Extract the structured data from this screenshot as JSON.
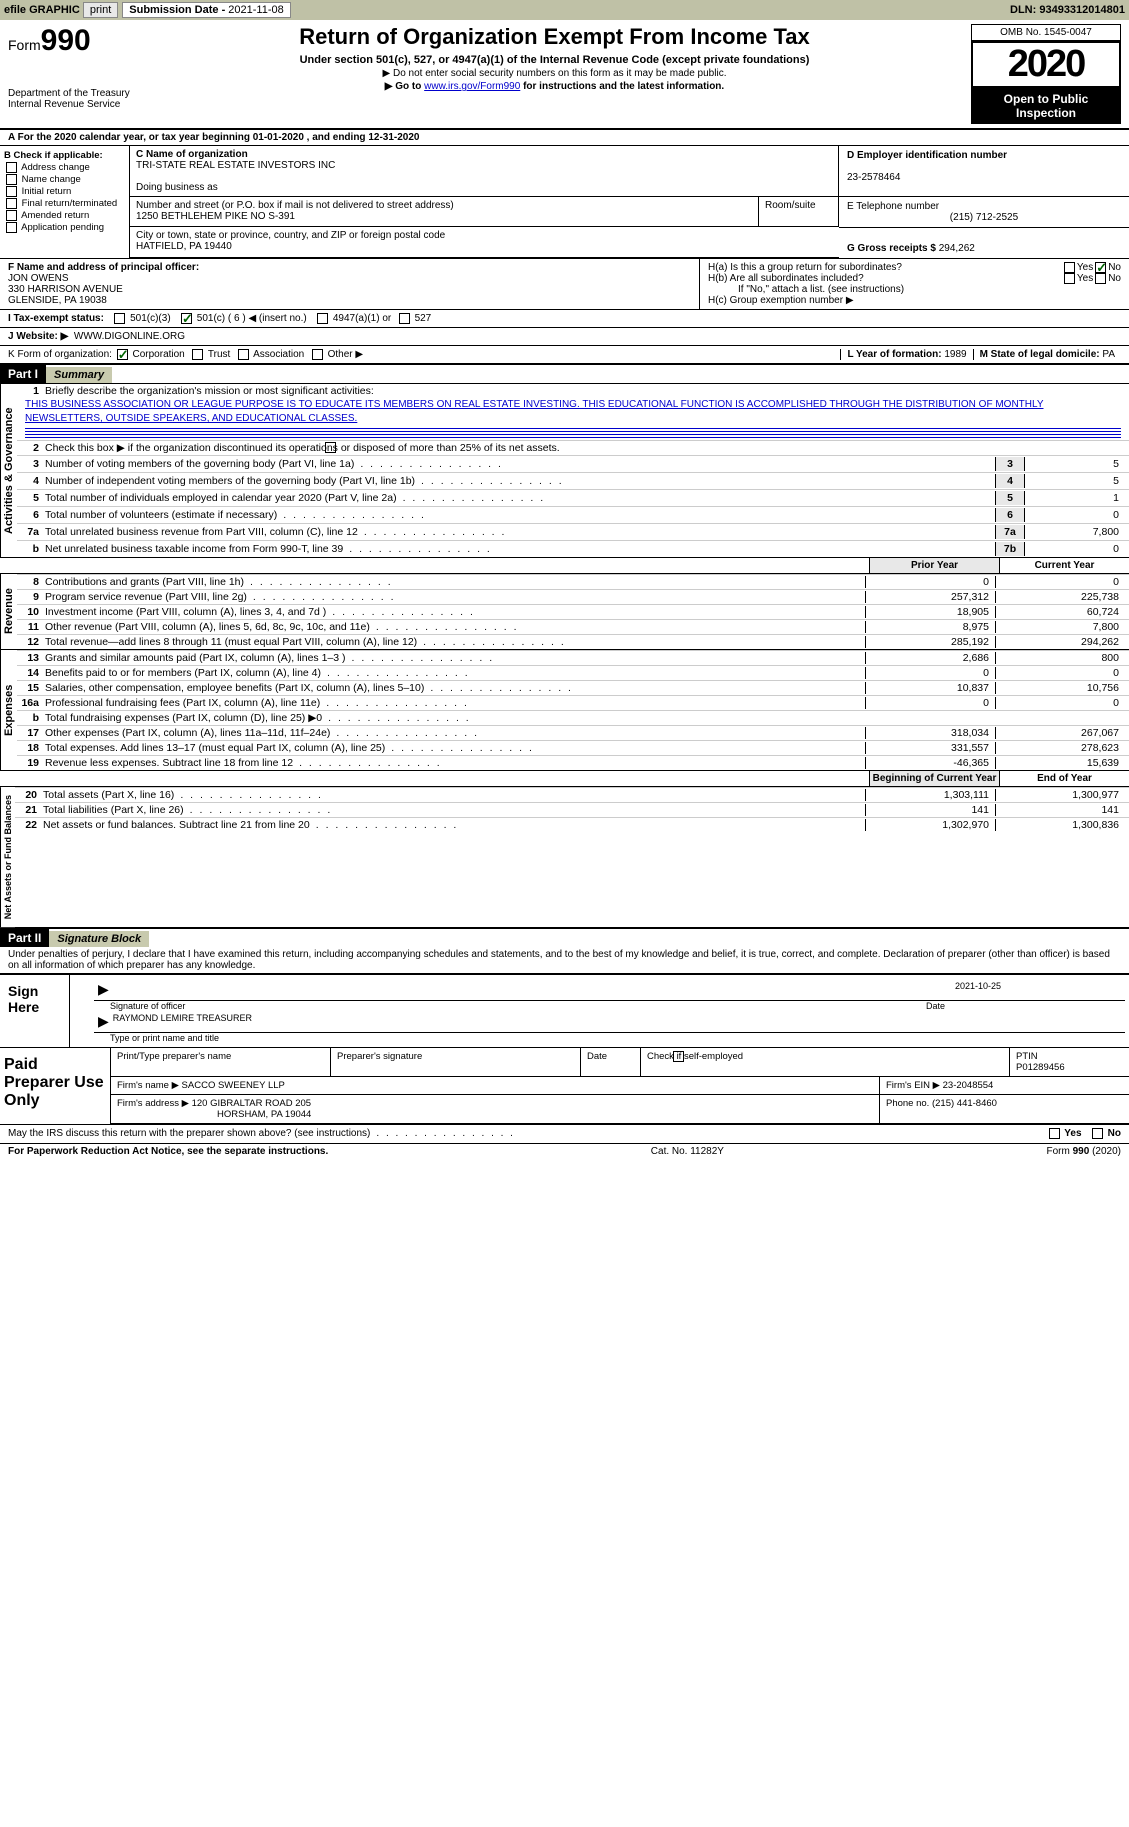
{
  "topbar": {
    "efile": "efile GRAPHIC",
    "print": "print",
    "subdate_label": "Submission Date - ",
    "subdate": "2021-11-08",
    "dln_label": "DLN: ",
    "dln": "93493312014801"
  },
  "header": {
    "form_prefix": "Form",
    "form_num": "990",
    "dept1": "Department of the Treasury",
    "dept2": "Internal Revenue Service",
    "title": "Return of Organization Exempt From Income Tax",
    "subtitle": "Under section 501(c), 527, or 4947(a)(1) of the Internal Revenue Code (except private foundations)",
    "note1": "▶ Do not enter social security numbers on this form as it may be made public.",
    "note2": "▶ Go to ",
    "link": "www.irs.gov/Form990",
    "note2b": " for instructions and the latest information.",
    "omb": "OMB No. 1545-0047",
    "year": "2020",
    "inspect1": "Open to Public",
    "inspect2": "Inspection"
  },
  "row_a": "A For the 2020 calendar year, or tax year beginning 01-01-2020   , and ending 12-31-2020",
  "col_b": {
    "label": "B Check if applicable:",
    "items": [
      "Address change",
      "Name change",
      "Initial return",
      "Final return/terminated",
      "Amended return",
      "Application pending"
    ]
  },
  "c_block": {
    "name_label": "C Name of organization",
    "name": "TRI-STATE REAL ESTATE INVESTORS INC",
    "dba_label": "Doing business as",
    "addr_label": "Number and street (or P.O. box if mail is not delivered to street address)",
    "room_label": "Room/suite",
    "addr": "1250 BETHLEHEM PIKE NO S-391",
    "city_label": "City or town, state or province, country, and ZIP or foreign postal code",
    "city": "HATFIELD, PA  19440"
  },
  "d_block": {
    "ein_label": "D Employer identification number",
    "ein": "23-2578464",
    "tel_label": "E Telephone number",
    "tel": "(215) 712-2525",
    "gross_label": "G Gross receipts $ ",
    "gross": "294,262"
  },
  "f_block": {
    "label": "F Name and address of principal officer:",
    "name": "JON OWENS",
    "addr1": "330 HARRISON AVENUE",
    "addr2": "GLENSIDE, PA  19038"
  },
  "h_block": {
    "ha": "H(a)  Is this a group return for subordinates?",
    "hb": "H(b)  Are all subordinates included?",
    "hb_note": "If \"No,\" attach a list. (see instructions)",
    "hc": "H(c)  Group exemption number ▶",
    "yes": "Yes",
    "no": "No"
  },
  "i_row": {
    "label": "I  Tax-exempt status:",
    "o1": "501(c)(3)",
    "o2": "501(c) ( 6 ) ◀ (insert no.)",
    "o3": "4947(a)(1) or",
    "o4": "527"
  },
  "j_row": {
    "label": "J  Website: ▶",
    "val": "WWW.DIGONLINE.ORG"
  },
  "k_row": {
    "label": "K Form of organization:",
    "opts": [
      "Corporation",
      "Trust",
      "Association",
      "Other ▶"
    ],
    "l_label": "L Year of formation: ",
    "l_val": "1989",
    "m_label": "M State of legal domicile: ",
    "m_val": "PA"
  },
  "part1": {
    "hdr": "Part I",
    "title": "Summary",
    "q1": "Briefly describe the organization's mission or most significant activities:",
    "mission": "THIS BUSINESS ASSOCIATION OR LEAGUE PURPOSE IS TO EDUCATE ITS MEMBERS ON REAL ESTATE INVESTING. THIS EDUCATIONAL FUNCTION IS ACCOMPLISHED THROUGH THE DISTRIBUTION OF MONTHLY NEWSLETTERS, OUTSIDE SPEAKERS, AND EDUCATIONAL CLASSES.",
    "q2": "Check this box ▶       if the organization discontinued its operations or disposed of more than 25% of its net assets."
  },
  "gov_lines": [
    {
      "n": "3",
      "t": "Number of voting members of the governing body (Part VI, line 1a)",
      "c": "3",
      "v": "5"
    },
    {
      "n": "4",
      "t": "Number of independent voting members of the governing body (Part VI, line 1b)",
      "c": "4",
      "v": "5"
    },
    {
      "n": "5",
      "t": "Total number of individuals employed in calendar year 2020 (Part V, line 2a)",
      "c": "5",
      "v": "1"
    },
    {
      "n": "6",
      "t": "Total number of volunteers (estimate if necessary)",
      "c": "6",
      "v": "0"
    },
    {
      "n": "7a",
      "t": "Total unrelated business revenue from Part VIII, column (C), line 12",
      "c": "7a",
      "v": "7,800"
    },
    {
      "n": "b",
      "t": "Net unrelated business taxable income from Form 990-T, line 39",
      "c": "7b",
      "v": "0"
    }
  ],
  "col_hdrs": {
    "prior": "Prior Year",
    "curr": "Current Year",
    "boy": "Beginning of Current Year",
    "eoy": "End of Year"
  },
  "rev_lines": [
    {
      "n": "8",
      "t": "Contributions and grants (Part VIII, line 1h)",
      "p": "0",
      "c": "0"
    },
    {
      "n": "9",
      "t": "Program service revenue (Part VIII, line 2g)",
      "p": "257,312",
      "c": "225,738"
    },
    {
      "n": "10",
      "t": "Investment income (Part VIII, column (A), lines 3, 4, and 7d )",
      "p": "18,905",
      "c": "60,724"
    },
    {
      "n": "11",
      "t": "Other revenue (Part VIII, column (A), lines 5, 6d, 8c, 9c, 10c, and 11e)",
      "p": "8,975",
      "c": "7,800"
    },
    {
      "n": "12",
      "t": "Total revenue—add lines 8 through 11 (must equal Part VIII, column (A), line 12)",
      "p": "285,192",
      "c": "294,262"
    }
  ],
  "exp_lines": [
    {
      "n": "13",
      "t": "Grants and similar amounts paid (Part IX, column (A), lines 1–3 )",
      "p": "2,686",
      "c": "800"
    },
    {
      "n": "14",
      "t": "Benefits paid to or for members (Part IX, column (A), line 4)",
      "p": "0",
      "c": "0"
    },
    {
      "n": "15",
      "t": "Salaries, other compensation, employee benefits (Part IX, column (A), lines 5–10)",
      "p": "10,837",
      "c": "10,756"
    },
    {
      "n": "16a",
      "t": "Professional fundraising fees (Part IX, column (A), line 11e)",
      "p": "0",
      "c": "0"
    },
    {
      "n": "b",
      "t": "Total fundraising expenses (Part IX, column (D), line 25) ▶0",
      "p": "",
      "c": "",
      "shade": true
    },
    {
      "n": "17",
      "t": "Other expenses (Part IX, column (A), lines 11a–11d, 11f–24e)",
      "p": "318,034",
      "c": "267,067"
    },
    {
      "n": "18",
      "t": "Total expenses. Add lines 13–17 (must equal Part IX, column (A), line 25)",
      "p": "331,557",
      "c": "278,623"
    },
    {
      "n": "19",
      "t": "Revenue less expenses. Subtract line 18 from line 12",
      "p": "-46,365",
      "c": "15,639"
    }
  ],
  "net_lines": [
    {
      "n": "20",
      "t": "Total assets (Part X, line 16)",
      "p": "1,303,111",
      "c": "1,300,977"
    },
    {
      "n": "21",
      "t": "Total liabilities (Part X, line 26)",
      "p": "141",
      "c": "141"
    },
    {
      "n": "22",
      "t": "Net assets or fund balances. Subtract line 21 from line 20",
      "p": "1,302,970",
      "c": "1,300,836"
    }
  ],
  "part2": {
    "hdr": "Part II",
    "title": "Signature Block",
    "decl": "Under penalties of perjury, I declare that I have examined this return, including accompanying schedules and statements, and to the best of my knowledge and belief, it is true, correct, and complete. Declaration of preparer (other than officer) is based on all information of which preparer has any knowledge."
  },
  "sign": {
    "label": "Sign Here",
    "date": "2021-10-25",
    "sig_lbl": "Signature of officer",
    "date_lbl": "Date",
    "name": "RAYMOND LEMIRE  TREASURER",
    "name_lbl": "Type or print name and title"
  },
  "prep": {
    "label": "Paid Preparer Use Only",
    "h1": "Print/Type preparer's name",
    "h2": "Preparer's signature",
    "h3": "Date",
    "h4": "Check        if self-employed",
    "h5": "PTIN",
    "ptin": "P01289456",
    "firm_lbl": "Firm's name   ▶",
    "firm": "SACCO SWEENEY LLP",
    "ein_lbl": "Firm's EIN ▶",
    "ein": "23-2048554",
    "addr_lbl": "Firm's address ▶",
    "addr1": "120 GIBRALTAR ROAD 205",
    "addr2": "HORSHAM, PA  19044",
    "ph_lbl": "Phone no. ",
    "ph": "(215) 441-8460"
  },
  "discuss": "May the IRS discuss this return with the preparer shown above? (see instructions)",
  "footer": {
    "l": "For Paperwork Reduction Act Notice, see the separate instructions.",
    "m": "Cat. No. 11282Y",
    "r": "Form 990 (2020)"
  },
  "sections": {
    "gov": "Activities & Governance",
    "rev": "Revenue",
    "exp": "Expenses",
    "net": "Net Assets or Fund Balances"
  }
}
